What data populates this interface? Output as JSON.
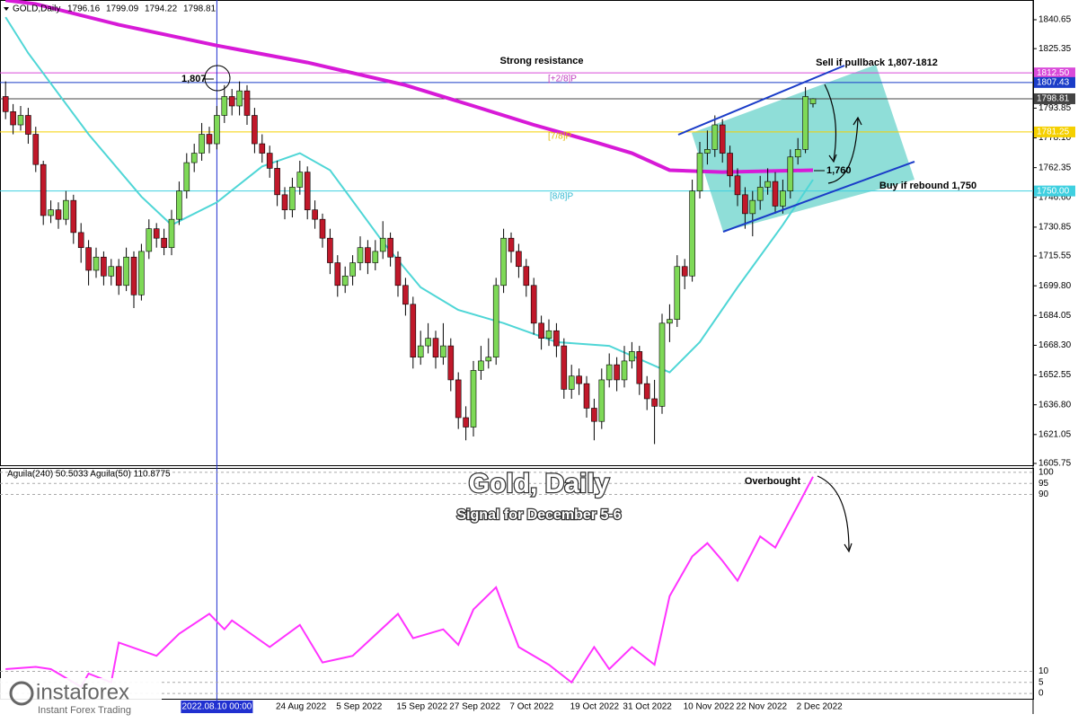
{
  "header": {
    "symbol": "GOLD,Daily"
  },
  "branding": {
    "name": "instaforex",
    "tagline": "Instant Forex Trading"
  },
  "chart_data": [
    {
      "type": "candlestick",
      "title": "Gold, Daily",
      "subtitle": "Signal for December 5-6",
      "categories": [
        null,
        null,
        null,
        null,
        null,
        null,
        null,
        null,
        null,
        null,
        null,
        null,
        null,
        null,
        null,
        null,
        null,
        null,
        null,
        null,
        null,
        null,
        null,
        null,
        null,
        null,
        null,
        null,
        "2022.08.10 00:00",
        null,
        null,
        null,
        null,
        null,
        null,
        null,
        null,
        "24 Aug 2022",
        null,
        null,
        null,
        null,
        null,
        null,
        null,
        "5 Sep 2022",
        null,
        null,
        null,
        null,
        null,
        null,
        null,
        "15 Sep 2022",
        null,
        null,
        null,
        null,
        null,
        null,
        "27 Sep 2022",
        null,
        null,
        null,
        null,
        null,
        null,
        null,
        "7 Oct 2022",
        null,
        null,
        null,
        null,
        null,
        null,
        null,
        "19 Oct 2022",
        null,
        null,
        null,
        null,
        null,
        null,
        "31 Oct 2022",
        null,
        null,
        null,
        null,
        null,
        null,
        null,
        "10 Nov 2022",
        null,
        null,
        null,
        null,
        null,
        null,
        "22 Nov 2022",
        null,
        null,
        null,
        null,
        null,
        null,
        null,
        "2 Dec 2022",
        null
      ],
      "ohlc": [
        [
          1800,
          1808,
          1788,
          1792
        ],
        [
          1792,
          1796,
          1780,
          1785
        ],
        [
          1785,
          1795,
          1782,
          1790
        ],
        [
          1790,
          1794,
          1775,
          1780
        ],
        [
          1780,
          1784,
          1760,
          1764
        ],
        [
          1764,
          1766,
          1732,
          1737
        ],
        [
          1737,
          1745,
          1733,
          1740
        ],
        [
          1740,
          1744,
          1730,
          1735
        ],
        [
          1735,
          1750,
          1732,
          1745
        ],
        [
          1745,
          1748,
          1722,
          1728
        ],
        [
          1728,
          1733,
          1712,
          1720
        ],
        [
          1720,
          1724,
          1700,
          1708
        ],
        [
          1708,
          1720,
          1704,
          1715
        ],
        [
          1715,
          1718,
          1700,
          1705
        ],
        [
          1705,
          1714,
          1700,
          1710
        ],
        [
          1710,
          1714,
          1695,
          1700
        ],
        [
          1700,
          1720,
          1697,
          1715
        ],
        [
          1715,
          1718,
          1688,
          1695
        ],
        [
          1695,
          1722,
          1692,
          1718
        ],
        [
          1718,
          1735,
          1714,
          1730
        ],
        [
          1730,
          1733,
          1720,
          1725
        ],
        [
          1725,
          1730,
          1716,
          1720
        ],
        [
          1720,
          1740,
          1716,
          1735
        ],
        [
          1735,
          1755,
          1732,
          1750
        ],
        [
          1750,
          1770,
          1746,
          1765
        ],
        [
          1765,
          1775,
          1760,
          1770
        ],
        [
          1770,
          1786,
          1766,
          1780
        ],
        [
          1780,
          1784,
          1770,
          1775
        ],
        [
          1775,
          1795,
          1772,
          1790
        ],
        [
          1790,
          1806,
          1786,
          1800
        ],
        [
          1800,
          1804,
          1790,
          1795
        ],
        [
          1795,
          1808,
          1790,
          1803
        ],
        [
          1803,
          1806,
          1785,
          1790
        ],
        [
          1790,
          1794,
          1770,
          1775
        ],
        [
          1775,
          1780,
          1765,
          1770
        ],
        [
          1770,
          1774,
          1757,
          1762
        ],
        [
          1762,
          1766,
          1742,
          1748
        ],
        [
          1748,
          1752,
          1735,
          1740
        ],
        [
          1740,
          1757,
          1736,
          1752
        ],
        [
          1752,
          1766,
          1748,
          1760
        ],
        [
          1760,
          1763,
          1735,
          1740
        ],
        [
          1740,
          1745,
          1730,
          1735
        ],
        [
          1735,
          1738,
          1720,
          1725
        ],
        [
          1725,
          1730,
          1706,
          1712
        ],
        [
          1712,
          1716,
          1694,
          1700
        ],
        [
          1700,
          1710,
          1696,
          1705
        ],
        [
          1705,
          1716,
          1700,
          1712
        ],
        [
          1712,
          1726,
          1708,
          1720
        ],
        [
          1720,
          1724,
          1706,
          1712
        ],
        [
          1712,
          1724,
          1708,
          1718
        ],
        [
          1718,
          1734,
          1714,
          1725
        ],
        [
          1725,
          1728,
          1710,
          1715
        ],
        [
          1715,
          1718,
          1694,
          1700
        ],
        [
          1700,
          1704,
          1684,
          1690
        ],
        [
          1690,
          1694,
          1656,
          1662
        ],
        [
          1662,
          1676,
          1658,
          1668
        ],
        [
          1668,
          1680,
          1664,
          1672
        ],
        [
          1672,
          1676,
          1656,
          1662
        ],
        [
          1662,
          1680,
          1658,
          1668
        ],
        [
          1668,
          1672,
          1644,
          1650
        ],
        [
          1650,
          1654,
          1624,
          1630
        ],
        [
          1630,
          1636,
          1618,
          1625
        ],
        [
          1625,
          1660,
          1620,
          1655
        ],
        [
          1655,
          1668,
          1650,
          1660
        ],
        [
          1660,
          1672,
          1656,
          1662
        ],
        [
          1662,
          1704,
          1658,
          1700
        ],
        [
          1700,
          1730,
          1696,
          1725
        ],
        [
          1725,
          1728,
          1712,
          1718
        ],
        [
          1718,
          1722,
          1704,
          1710
        ],
        [
          1710,
          1714,
          1694,
          1700
        ],
        [
          1700,
          1704,
          1674,
          1680
        ],
        [
          1680,
          1684,
          1666,
          1672
        ],
        [
          1672,
          1682,
          1668,
          1676
        ],
        [
          1676,
          1680,
          1662,
          1668
        ],
        [
          1668,
          1672,
          1640,
          1645
        ],
        [
          1645,
          1658,
          1640,
          1652
        ],
        [
          1652,
          1656,
          1642,
          1648
        ],
        [
          1648,
          1652,
          1630,
          1635
        ],
        [
          1635,
          1640,
          1618,
          1628
        ],
        [
          1628,
          1656,
          1624,
          1650
        ],
        [
          1650,
          1664,
          1646,
          1658
        ],
        [
          1658,
          1662,
          1644,
          1650
        ],
        [
          1650,
          1668,
          1646,
          1660
        ],
        [
          1660,
          1670,
          1656,
          1665
        ],
        [
          1665,
          1668,
          1642,
          1648
        ],
        [
          1648,
          1652,
          1634,
          1640
        ],
        [
          1640,
          1650,
          1616,
          1636
        ],
        [
          1636,
          1685,
          1632,
          1680
        ],
        [
          1680,
          1690,
          1670,
          1682
        ],
        [
          1682,
          1716,
          1678,
          1710
        ],
        [
          1710,
          1714,
          1698,
          1705
        ],
        [
          1705,
          1756,
          1702,
          1750
        ],
        [
          1750,
          1776,
          1746,
          1770
        ],
        [
          1770,
          1782,
          1764,
          1772
        ],
        [
          1772,
          1790,
          1768,
          1785
        ],
        [
          1785,
          1788,
          1765,
          1770
        ],
        [
          1770,
          1774,
          1752,
          1758
        ],
        [
          1758,
          1762,
          1742,
          1748
        ],
        [
          1748,
          1752,
          1730,
          1738
        ],
        [
          1738,
          1750,
          1726,
          1745
        ],
        [
          1745,
          1758,
          1740,
          1752
        ],
        [
          1752,
          1762,
          1748,
          1755
        ],
        [
          1755,
          1760,
          1738,
          1742
        ],
        [
          1742,
          1756,
          1738,
          1750
        ],
        [
          1750,
          1772,
          1746,
          1768
        ],
        [
          1768,
          1778,
          1764,
          1772
        ],
        [
          1772,
          1805,
          1770,
          1800
        ],
        [
          1796.16,
          1799.09,
          1794.22,
          1798.81
        ]
      ],
      "up_color": "#7ed957",
      "down_color": "#c0182a",
      "ylim": [
        1604.8,
        1851.1
      ],
      "yticks": [
        1840.65,
        1825.35,
        1793.85,
        {
          "value": 1778.1,
          "label": "1778.10"
        },
        1762.35,
        {
          "value": 1746.6,
          "label": "1746.60"
        },
        1730.85,
        1715.55,
        {
          "value": 1699.8,
          "label": "1699.80"
        },
        1684.05,
        {
          "value": 1668.3,
          "label": "1668.30"
        },
        1652.55,
        {
          "value": 1636.8,
          "label": "1636.80"
        },
        1621.05,
        1605.75
      ],
      "levels": [
        {
          "value": 1812.5,
          "label": "1812.50",
          "color": "#d94ad9"
        },
        {
          "value": 1807.43,
          "label": "1807.43",
          "color": "#1a3cc8"
        },
        {
          "value": 1798.81,
          "label": "1798.81",
          "color": "#444444"
        },
        {
          "value": 1781.25,
          "label": "1781.25",
          "color": "#f5d000"
        },
        {
          "value": 1750,
          "label": "1750.00",
          "color": "#3fd0e0"
        }
      ],
      "moving_averages": [
        {
          "color": "#d71ad7",
          "x": [
            0,
            4,
            15,
            28,
            40,
            53,
            62,
            70,
            78,
            83,
            88,
            95,
            107
          ],
          "values": [
            1851,
            1849,
            1838,
            1827,
            1818,
            1806,
            1795,
            1785,
            1776,
            1770,
            1761,
            1760,
            1761
          ]
        },
        {
          "color": "#4fd6d6",
          "x": [
            0,
            3,
            11,
            18,
            22,
            28,
            34,
            39,
            43,
            50,
            55,
            60,
            66,
            73,
            80,
            88,
            92,
            97,
            103,
            107
          ],
          "values": [
            1842,
            1823,
            1780,
            1747,
            1732,
            1744,
            1763,
            1770,
            1761,
            1723,
            1699,
            1687,
            1680,
            1670,
            1668,
            1654,
            1670,
            1699,
            1732,
            1756
          ]
        }
      ],
      "annotations": [
        "Strong resistance",
        "Sell if pullback 1,807-1812",
        "Buy if rebound 1,750",
        "1,807",
        "1,760",
        "[+2/8]P",
        "[7/8]P",
        "[8/8]P"
      ]
    },
    {
      "type": "line",
      "title": "Aguila(240) 50.5033  Aguila(50) 110.8775",
      "color": "#ff33ff",
      "x": [
        0,
        4,
        6,
        10,
        11,
        14,
        15,
        20,
        23,
        27,
        29,
        30,
        35,
        39,
        42,
        46,
        52,
        54,
        58,
        60,
        62,
        65,
        68,
        72,
        75,
        78,
        80,
        83,
        86,
        88,
        91,
        93,
        95,
        97,
        100,
        102,
        105,
        107
      ],
      "values": [
        11,
        12,
        11,
        3,
        9,
        5,
        23,
        17,
        27,
        36,
        29,
        33,
        21,
        31,
        14,
        17,
        36,
        25,
        29,
        22,
        38,
        48,
        21,
        13,
        5,
        21,
        11,
        21,
        13,
        44,
        62,
        68,
        60,
        51,
        71,
        66,
        85,
        98
      ],
      "ylim": [
        -2.4,
        102
      ],
      "yticks": [
        100,
        95,
        90,
        10,
        5,
        0
      ],
      "grid": true,
      "annotations": [
        "Overbought"
      ]
    }
  ]
}
